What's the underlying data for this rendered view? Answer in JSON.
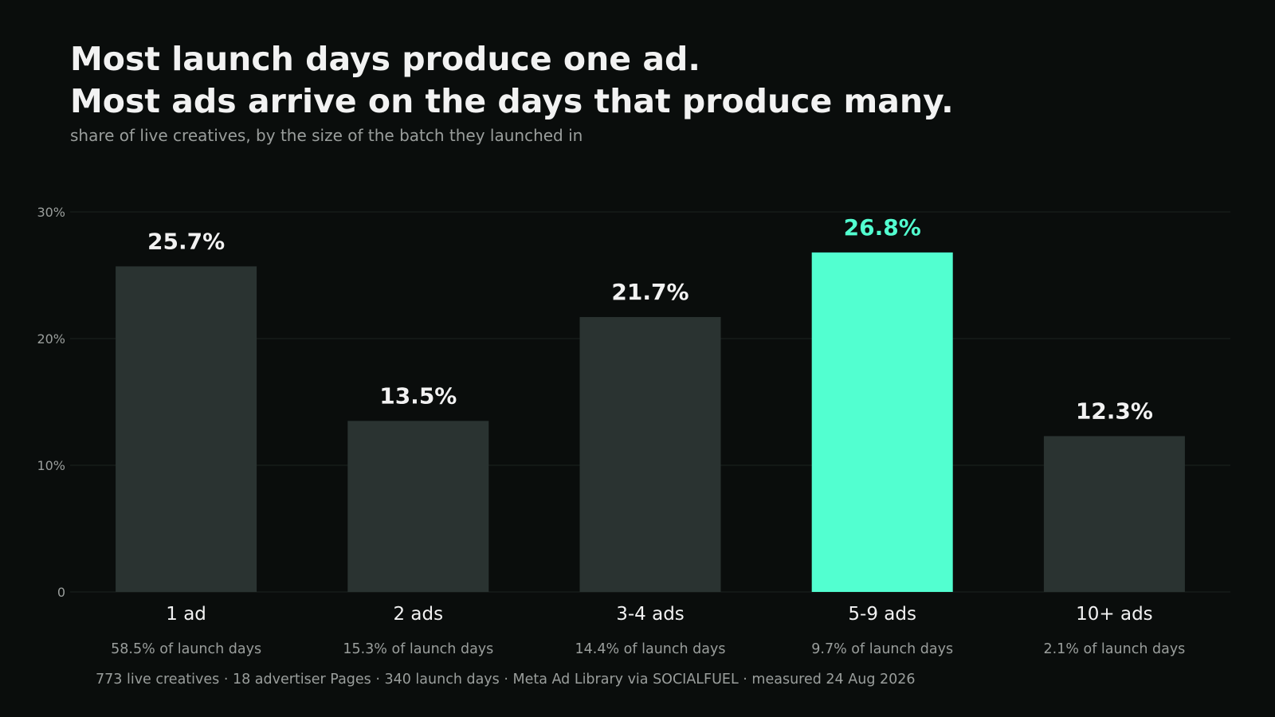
{
  "header": {
    "title_line1": "Most launch days produce one ad.",
    "title_line2": "Most ads arrive on the days that produce many.",
    "subtitle": "share of live creatives, by the size of the batch they launched in"
  },
  "footer": {
    "note": "773 live creatives · 18 advertiser Pages · 340 launch days · Meta Ad Library via SOCIALFUEL · measured 24 Aug 2026"
  },
  "chart_data": {
    "type": "bar",
    "title": "Most launch days produce one ad. Most ads arrive on the days that produce many.",
    "subtitle": "share of live creatives, by the size of the batch they launched in",
    "xlabel": "",
    "ylabel": "",
    "categories": [
      "1 ad",
      "2 ads",
      "3-4 ads",
      "5-9 ads",
      "10+ ads"
    ],
    "values": [
      25.7,
      13.5,
      21.7,
      26.8,
      12.3
    ],
    "value_labels": [
      "25.7%",
      "13.5%",
      "21.7%",
      "26.8%",
      "12.3%"
    ],
    "category_sublabels": [
      "58.5% of launch days",
      "15.3% of launch days",
      "14.4% of launch days",
      "9.7% of launch days",
      "2.1% of launch days"
    ],
    "highlight_index": 3,
    "ylim": [
      0,
      30
    ],
    "yticks": [
      0,
      10,
      20,
      30
    ],
    "ytick_labels": [
      "0",
      "10%",
      "20%",
      "30%"
    ],
    "grid": true,
    "legend": "none",
    "colors": {
      "bar": "#2a3331",
      "highlight": "#52ffd0",
      "label": "#f2f2f2",
      "muted": "#9a9e9c",
      "grid": "#1c2220",
      "background": "#0a0d0c"
    }
  }
}
